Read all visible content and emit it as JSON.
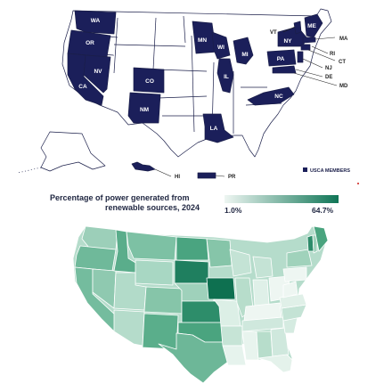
{
  "usca_map": {
    "legend_label": "USCA MEMBERS",
    "member_color": "#1b1f5a",
    "nonmember_color": "#ffffff",
    "member_states": [
      "WA",
      "OR",
      "CA",
      "NV",
      "CO",
      "NM",
      "MN",
      "WI",
      "IL",
      "MI",
      "NY",
      "PA",
      "NC",
      "LA",
      "VT",
      "ME",
      "MA",
      "RI",
      "CT",
      "NJ",
      "DE",
      "MD",
      "HI",
      "PR"
    ],
    "callout_labels": [
      "VT",
      "MA",
      "RI",
      "CT",
      "NJ",
      "DE",
      "MD",
      "HI",
      "PR"
    ]
  },
  "renewables_map": {
    "title_line1": "Percentage of power generated from",
    "title_line2": "renewable sources, 2024",
    "scale_min": "1.0%",
    "scale_max": "64.7%",
    "color_low": "#eef6f2",
    "color_high": "#0f7556"
  }
}
